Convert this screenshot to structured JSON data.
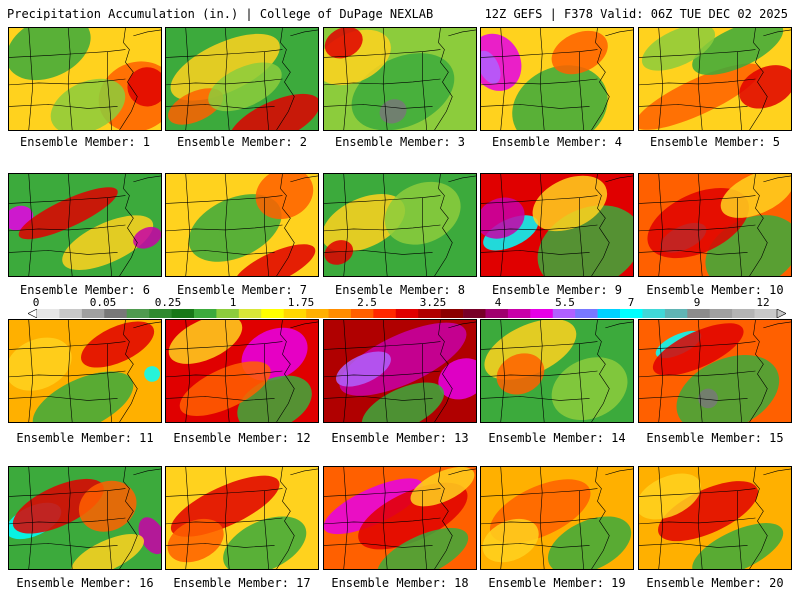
{
  "header": {
    "left_title": "Precipitation Accumulation (in.) | College of DuPage NEXLAB",
    "right_title": "12Z GEFS | F378 Valid: 06Z TUE DEC 02 2025"
  },
  "members": [
    {
      "label": "Ensemble Member: 1",
      "scheme": "wetNE"
    },
    {
      "label": "Ensemble Member: 2",
      "scheme": "greenSouth"
    },
    {
      "label": "Ensemble Member: 3",
      "scheme": "dryGreenGray"
    },
    {
      "label": "Ensemble Member: 4",
      "scheme": "magentaWest"
    },
    {
      "label": "Ensemble Member: 5",
      "scheme": "redBand"
    },
    {
      "label": "Ensemble Member: 6",
      "scheme": "magentaLeft"
    },
    {
      "label": "Ensemble Member: 7",
      "scheme": "greenCenter"
    },
    {
      "label": "Ensemble Member: 8",
      "scheme": "mostlyGreen"
    },
    {
      "label": "Ensemble Member: 9",
      "scheme": "cyanSW"
    },
    {
      "label": "Ensemble Member: 10",
      "scheme": "cyanCenterRed"
    },
    {
      "label": "Ensemble Member: 11",
      "scheme": "orangeCyanSpot"
    },
    {
      "label": "Ensemble Member: 12",
      "scheme": "redMagenta"
    },
    {
      "label": "Ensemble Member: 13",
      "scheme": "heavyMagenta"
    },
    {
      "label": "Ensemble Member: 14",
      "scheme": "greenYellow"
    },
    {
      "label": "Ensemble Member: 15",
      "scheme": "redTopCyan"
    },
    {
      "label": "Ensemble Member: 16",
      "scheme": "cyanWestBig"
    },
    {
      "label": "Ensemble Member: 17",
      "scheme": "redMix"
    },
    {
      "label": "Ensemble Member: 18",
      "scheme": "magentaBand"
    },
    {
      "label": "Ensemble Member: 19",
      "scheme": "orangeMix"
    },
    {
      "label": "Ensemble Member: 20",
      "scheme": "orangeRed"
    }
  ],
  "colorbar": {
    "ticks": [
      "0",
      "0.05",
      "0.25",
      "1",
      "1.75",
      "2.5",
      "3.25",
      "4",
      "5.5",
      "7",
      "9",
      "12"
    ],
    "colors": [
      "#e6e6e6",
      "#c8c8c8",
      "#a0a0a0",
      "#787878",
      "#4f9a4f",
      "#2f8a2f",
      "#187818",
      "#3caa3c",
      "#8ccc3c",
      "#d8e638",
      "#ffff00",
      "#ffd700",
      "#ffb000",
      "#ff8c00",
      "#ff6000",
      "#ff2800",
      "#e00000",
      "#b00000",
      "#8b0000",
      "#780028",
      "#a0006e",
      "#c800a8",
      "#e600e6",
      "#b060ff",
      "#7878ff",
      "#00d2ff",
      "#00ffff",
      "#40d8d8",
      "#60b4b4",
      "#8c8c8c",
      "#a0a0a0",
      "#b4b4b4",
      "#c8c8c8"
    ]
  }
}
